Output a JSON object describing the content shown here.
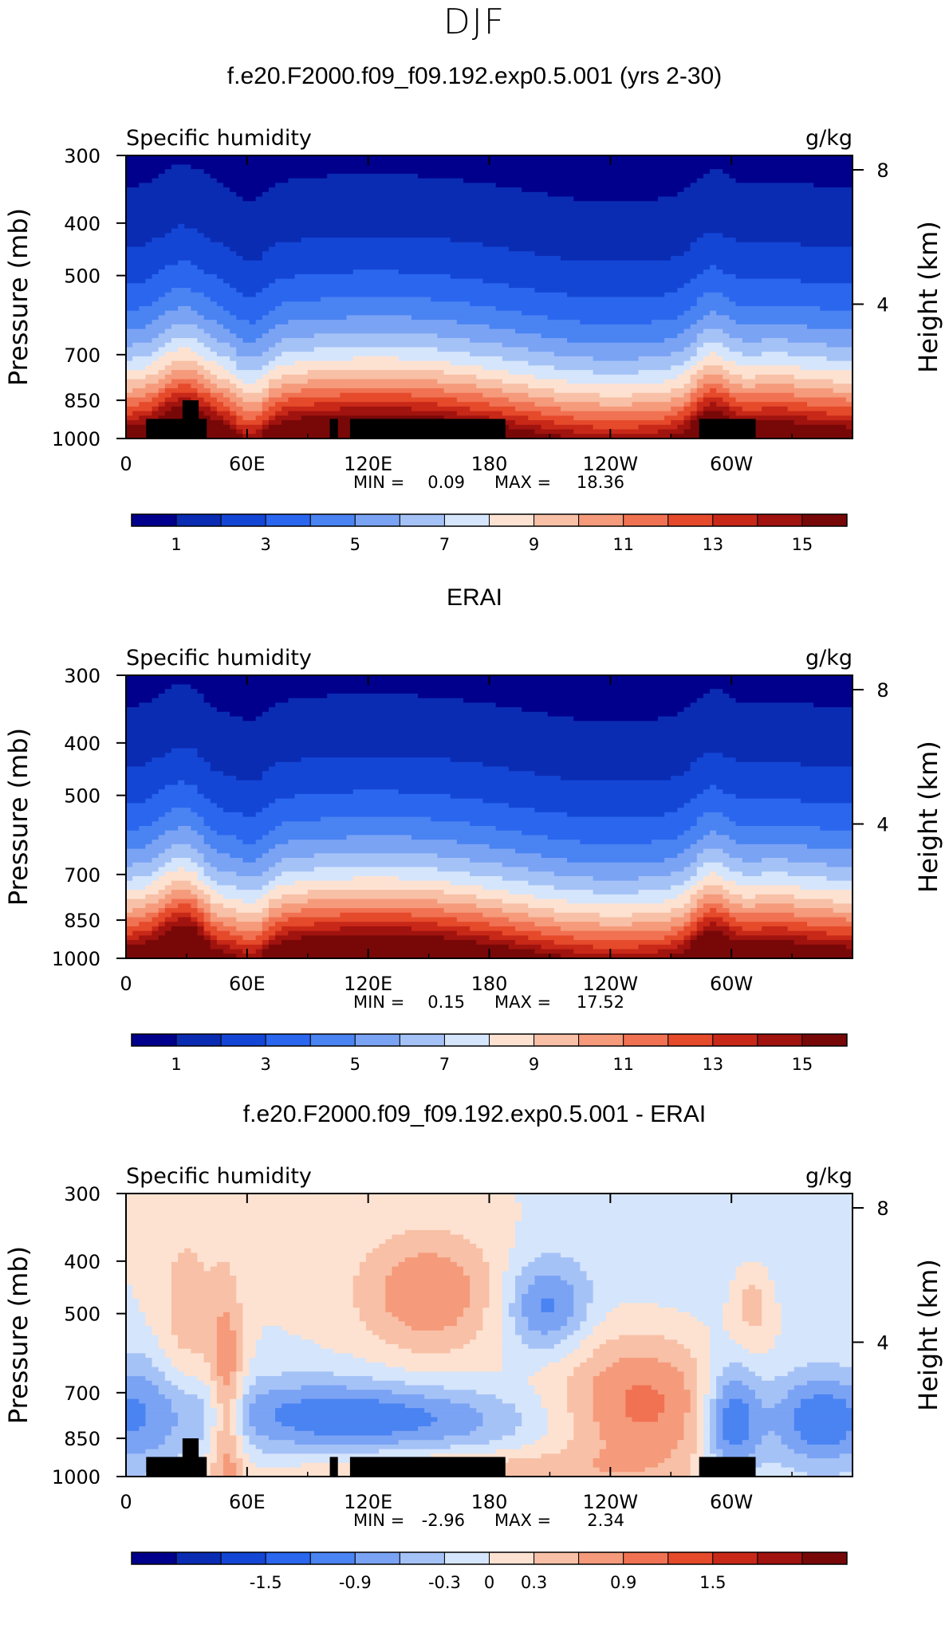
{
  "page": {
    "title": "DJF"
  },
  "chart_data": [
    {
      "type": "heatmap",
      "title": "f.e20.F2000.f09_f09.192.exp0.5.001 (yrs 2-30)",
      "subtitle_left": "Specific humidity",
      "units": "g/kg",
      "ylabel": "Pressure (mb)",
      "y2label": "Height (km)",
      "xticks": [
        "0",
        "60E",
        "120E",
        "180",
        "120W",
        "60W"
      ],
      "yticks": [
        "300",
        "400",
        "500",
        "700",
        "850",
        "1000"
      ],
      "y2ticks": [
        "8",
        "4"
      ],
      "ylim": [
        1000,
        300
      ],
      "xlim": [
        0,
        360
      ],
      "stats": {
        "min_label": "MIN =",
        "min": "0.09",
        "max_label": "MAX =",
        "max": "18.36"
      },
      "levels": [
        1,
        2,
        3,
        4,
        5,
        6,
        7,
        8,
        9,
        10,
        11,
        12,
        13,
        14,
        15
      ],
      "colorbar_labels": [
        "1",
        "3",
        "5",
        "7",
        "9",
        "11",
        "13",
        "15"
      ],
      "mask": true,
      "variant": "model"
    },
    {
      "type": "heatmap",
      "title": "ERAI",
      "subtitle_left": "Specific humidity",
      "units": "g/kg",
      "ylabel": "Pressure (mb)",
      "y2label": "Height (km)",
      "xticks": [
        "0",
        "60E",
        "120E",
        "180",
        "120W",
        "60W"
      ],
      "yticks": [
        "300",
        "400",
        "500",
        "700",
        "850",
        "1000"
      ],
      "y2ticks": [
        "8",
        "4"
      ],
      "ylim": [
        1000,
        300
      ],
      "xlim": [
        0,
        360
      ],
      "stats": {
        "min_label": "MIN =",
        "min": "0.15",
        "max_label": "MAX =",
        "max": "17.52"
      },
      "levels": [
        1,
        2,
        3,
        4,
        5,
        6,
        7,
        8,
        9,
        10,
        11,
        12,
        13,
        14,
        15
      ],
      "colorbar_labels": [
        "1",
        "3",
        "5",
        "7",
        "9",
        "11",
        "13",
        "15"
      ],
      "mask": false,
      "variant": "obs"
    },
    {
      "type": "heatmap",
      "title": "f.e20.F2000.f09_f09.192.exp0.5.001 - ERAI",
      "subtitle_left": "Specific humidity",
      "units": "g/kg",
      "ylabel": "Pressure (mb)",
      "y2label": "Height (km)",
      "xticks": [
        "0",
        "60E",
        "120E",
        "180",
        "120W",
        "60W"
      ],
      "yticks": [
        "300",
        "400",
        "500",
        "700",
        "850",
        "1000"
      ],
      "y2ticks": [
        "8",
        "4"
      ],
      "ylim": [
        1000,
        300
      ],
      "xlim": [
        0,
        360
      ],
      "stats": {
        "min_label": "MIN =",
        "min": "-2.96",
        "max_label": "MAX =",
        "max": "2.34"
      },
      "levels": [
        -2.1,
        -1.8,
        -1.5,
        -1.2,
        -0.9,
        -0.6,
        -0.3,
        0,
        0.3,
        0.6,
        0.9,
        1.2,
        1.5,
        1.8,
        2.1
      ],
      "colorbar_labels": [
        "-1.5",
        "-0.9",
        "-0.3",
        "0",
        "0.3",
        "0.9",
        "1.5"
      ],
      "mask": true,
      "variant": "diff"
    }
  ],
  "colormap": [
    "#00008c",
    "#0a2cb3",
    "#1446d6",
    "#2a66ee",
    "#4a83f2",
    "#7ba3f4",
    "#a5c2f7",
    "#d5e5fb",
    "#fde2d2",
    "#f8c0a6",
    "#f59a7b",
    "#f07252",
    "#e54a2b",
    "#c82818",
    "#a0130e",
    "#780808"
  ]
}
